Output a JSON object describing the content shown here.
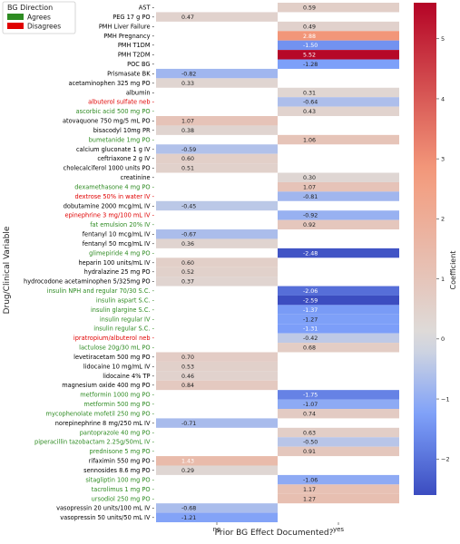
{
  "legend": {
    "title": "BG Direction",
    "items": [
      {
        "label": "Agrees",
        "color": "#2e8b22"
      },
      {
        "label": "Disagrees",
        "color": "#e00000"
      }
    ]
  },
  "colors": {
    "agrees_text": "#2e8b22",
    "disagrees_text": "#e00000",
    "neutral_text": "#000000",
    "colormap": "coolwarm"
  },
  "chart_data": {
    "type": "heatmap",
    "title": "",
    "xlabel": "Prior BG Effect Documented?",
    "ylabel": "Drug/Clinical Variable",
    "columns": [
      "no",
      "yes"
    ],
    "colorbar": {
      "label": "Coefficient",
      "range": [
        -2.6,
        5.6
      ],
      "ticks": [
        -2,
        -1,
        0,
        1,
        2,
        3,
        4,
        5
      ]
    },
    "rows": [
      {
        "label": "AST",
        "group": "neutral",
        "no": null,
        "yes": 0.59
      },
      {
        "label": "PEG 17 g PO",
        "group": "neutral",
        "no": 0.47,
        "yes": null
      },
      {
        "label": "PMH Liver Failure",
        "group": "neutral",
        "no": null,
        "yes": 0.49
      },
      {
        "label": "PMH Pregnancy",
        "group": "neutral",
        "no": null,
        "yes": 2.88
      },
      {
        "label": "PMH T1DM",
        "group": "neutral",
        "no": null,
        "yes": -1.5
      },
      {
        "label": "PMH T2DM",
        "group": "neutral",
        "no": null,
        "yes": 5.52
      },
      {
        "label": "POC BG",
        "group": "neutral",
        "no": null,
        "yes": -1.28
      },
      {
        "label": "Prismasate BK",
        "group": "neutral",
        "no": -0.82,
        "yes": null
      },
      {
        "label": "acetaminophen 325 mg PO",
        "group": "neutral",
        "no": 0.33,
        "yes": null
      },
      {
        "label": "albumin",
        "group": "neutral",
        "no": null,
        "yes": 0.31
      },
      {
        "label": "albuterol sulfate neb",
        "group": "disagrees",
        "no": null,
        "yes": -0.64
      },
      {
        "label": "ascorbic acid 500 mg PO",
        "group": "agrees",
        "no": null,
        "yes": 0.43
      },
      {
        "label": "atovaquone 750 mg/5 mL PO",
        "group": "neutral",
        "no": 1.07,
        "yes": null
      },
      {
        "label": "bisacodyl 10mg PR",
        "group": "neutral",
        "no": 0.38,
        "yes": null
      },
      {
        "label": "bumetanide 1mg  PO",
        "group": "agrees",
        "no": null,
        "yes": 1.06
      },
      {
        "label": "calcium gluconate 1 g IV",
        "group": "neutral",
        "no": -0.59,
        "yes": null
      },
      {
        "label": "ceftriaxone 2 g IV",
        "group": "neutral",
        "no": 0.6,
        "yes": null
      },
      {
        "label": "cholecalciferol 1000 units PO",
        "group": "neutral",
        "no": 0.51,
        "yes": null
      },
      {
        "label": "creatinine",
        "group": "neutral",
        "no": null,
        "yes": 0.3
      },
      {
        "label": "dexamethasone 4 mg PO",
        "group": "agrees",
        "no": null,
        "yes": 1.07
      },
      {
        "label": "dextrose 50% in water IV",
        "group": "disagrees",
        "no": null,
        "yes": -0.81
      },
      {
        "label": "dobutamine 2000 mcg/mL IV",
        "group": "neutral",
        "no": -0.45,
        "yes": null
      },
      {
        "label": "epinephrine 3 mg/100 mL IV",
        "group": "disagrees",
        "no": null,
        "yes": -0.92
      },
      {
        "label": "fat emulsion 20% IV",
        "group": "agrees",
        "no": null,
        "yes": 0.92
      },
      {
        "label": "fentanyl 10 mcg/mL IV",
        "group": "neutral",
        "no": -0.67,
        "yes": null
      },
      {
        "label": "fentanyl 50 mcg/mL IV",
        "group": "neutral",
        "no": 0.36,
        "yes": null
      },
      {
        "label": "glimepiride 4 mg PO",
        "group": "agrees",
        "no": null,
        "yes": -2.48
      },
      {
        "label": "heparin 100 units/mL IV",
        "group": "neutral",
        "no": 0.6,
        "yes": null
      },
      {
        "label": "hydralazine 25 mg PO",
        "group": "neutral",
        "no": 0.52,
        "yes": null
      },
      {
        "label": "hydrocodone acetaminophen 5/325mg PO",
        "group": "neutral",
        "no": 0.37,
        "yes": null
      },
      {
        "label": "insulin NPH and regular 70/30 S.C.",
        "group": "agrees",
        "no": null,
        "yes": -2.06
      },
      {
        "label": "insulin aspart S.C.",
        "group": "agrees",
        "no": null,
        "yes": -2.59
      },
      {
        "label": "insulin glargine S.C.",
        "group": "agrees",
        "no": null,
        "yes": -1.37
      },
      {
        "label": "insulin regular IV",
        "group": "agrees",
        "no": null,
        "yes": -1.27
      },
      {
        "label": "insulin regular S.C.",
        "group": "agrees",
        "no": null,
        "yes": -1.31
      },
      {
        "label": "ipratropium/albuterol neb",
        "group": "disagrees",
        "no": null,
        "yes": -0.42
      },
      {
        "label": "lactulose 20g/30 mL PO",
        "group": "agrees",
        "no": null,
        "yes": 0.68
      },
      {
        "label": "levetiracetam 500 mg PO",
        "group": "neutral",
        "no": 0.7,
        "yes": null
      },
      {
        "label": "lidocaine 10 mg/mL IV",
        "group": "neutral",
        "no": 0.53,
        "yes": null
      },
      {
        "label": "lidocaine 4% TP",
        "group": "neutral",
        "no": 0.46,
        "yes": null
      },
      {
        "label": "magnesium oxide 400 mg PO",
        "group": "neutral",
        "no": 0.84,
        "yes": null
      },
      {
        "label": "metformin 1000 mg PO",
        "group": "agrees",
        "no": null,
        "yes": -1.75
      },
      {
        "label": "metformin 500 mg PO",
        "group": "agrees",
        "no": null,
        "yes": -1.07
      },
      {
        "label": "mycophenolate mofetil 250 mg PO",
        "group": "agrees",
        "no": null,
        "yes": 0.74
      },
      {
        "label": "norepinephrine 8 mg/250 mL IV",
        "group": "neutral",
        "no": -0.71,
        "yes": null
      },
      {
        "label": "pantoprazole 40 mg PO",
        "group": "agrees",
        "no": null,
        "yes": 0.63
      },
      {
        "label": "piperacillin tazobactam 2.25g/50mL IV",
        "group": "agrees",
        "no": null,
        "yes": -0.5
      },
      {
        "label": "prednisone 5 mg PO",
        "group": "agrees",
        "no": null,
        "yes": 0.91
      },
      {
        "label": "rifaximin 550 mg PO",
        "group": "neutral",
        "no": 1.43,
        "yes": null
      },
      {
        "label": "sennosides 8.6 mg PO",
        "group": "neutral",
        "no": 0.29,
        "yes": null
      },
      {
        "label": "sitagliptin 100 mg PO",
        "group": "agrees",
        "no": null,
        "yes": -1.06
      },
      {
        "label": "tacrolimus 1 mg PO",
        "group": "agrees",
        "no": null,
        "yes": 1.17
      },
      {
        "label": "ursodiol 250 mg PO",
        "group": "agrees",
        "no": null,
        "yes": 1.27
      },
      {
        "label": "vasopressin 20 units/100 mL IV",
        "group": "neutral",
        "no": -0.68,
        "yes": null
      },
      {
        "label": "vasopressin 50 units/50 mL IV",
        "group": "neutral",
        "no": -1.21,
        "yes": null
      }
    ]
  }
}
